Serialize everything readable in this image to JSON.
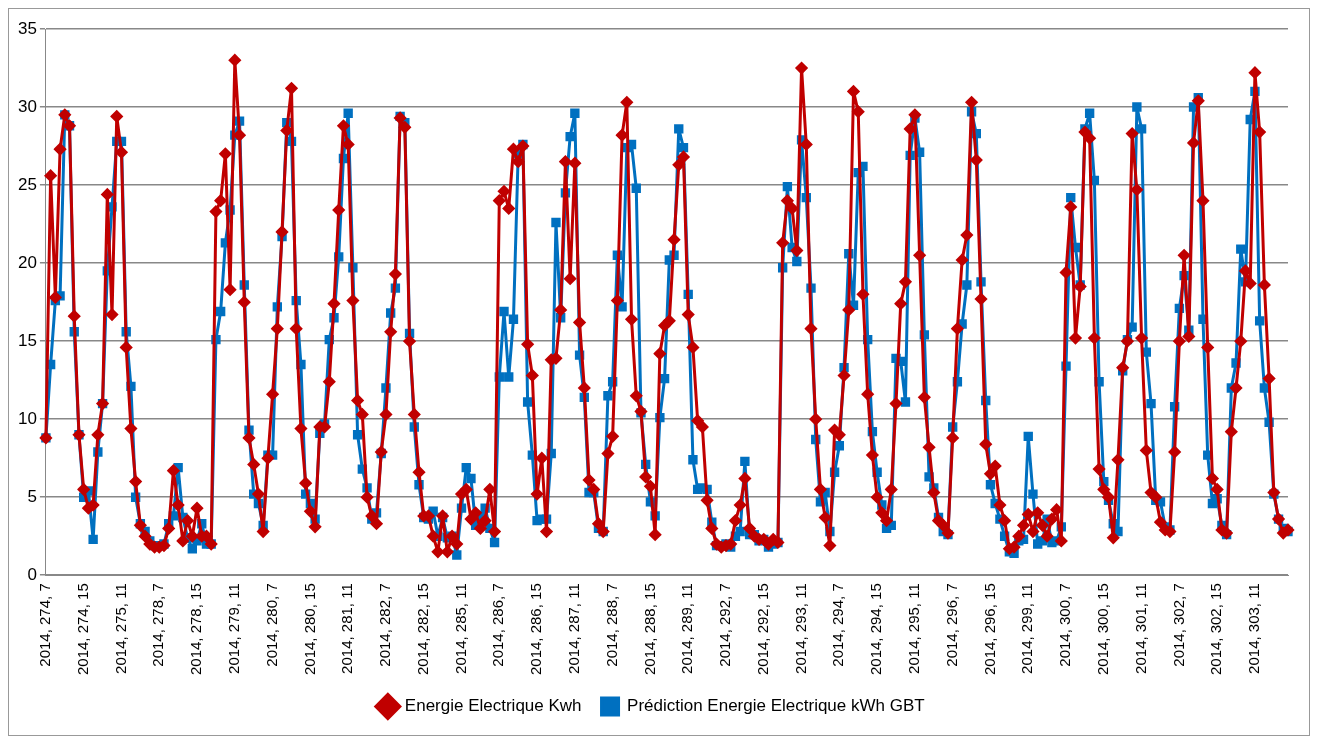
{
  "chart_data": {
    "type": "line",
    "categories": [
      "2014, 274, 7",
      null,
      null,
      null,
      null,
      null,
      null,
      null,
      "2014, 274, 15",
      null,
      null,
      null,
      null,
      null,
      null,
      null,
      "2014, 275, 11",
      null,
      null,
      null,
      null,
      null,
      null,
      null,
      "2014, 278, 7",
      null,
      null,
      null,
      null,
      null,
      null,
      null,
      "2014, 278, 15",
      null,
      null,
      null,
      null,
      null,
      null,
      null,
      "2014, 279, 11",
      null,
      null,
      null,
      null,
      null,
      null,
      null,
      "2014, 280, 7",
      null,
      null,
      null,
      null,
      null,
      null,
      null,
      "2014, 280, 15",
      null,
      null,
      null,
      null,
      null,
      null,
      null,
      "2014, 281, 11",
      null,
      null,
      null,
      null,
      null,
      null,
      null,
      "2014, 282, 7",
      null,
      null,
      null,
      null,
      null,
      null,
      null,
      "2014, 282, 15",
      null,
      null,
      null,
      null,
      null,
      null,
      null,
      "2014, 285, 11",
      null,
      null,
      null,
      null,
      null,
      null,
      null,
      "2014, 286, 7",
      null,
      null,
      null,
      null,
      null,
      null,
      null,
      "2014, 286, 15",
      null,
      null,
      null,
      null,
      null,
      null,
      null,
      "2014, 287, 11",
      null,
      null,
      null,
      null,
      null,
      null,
      null,
      "2014, 288, 7",
      null,
      null,
      null,
      null,
      null,
      null,
      null,
      "2014, 288, 15",
      null,
      null,
      null,
      null,
      null,
      null,
      null,
      "2014, 289, 11",
      null,
      null,
      null,
      null,
      null,
      null,
      null,
      "2014, 292, 7",
      null,
      null,
      null,
      null,
      null,
      null,
      null,
      "2014, 292, 15",
      null,
      null,
      null,
      null,
      null,
      null,
      null,
      "2014, 293, 11",
      null,
      null,
      null,
      null,
      null,
      null,
      null,
      "2014, 294, 7",
      null,
      null,
      null,
      null,
      null,
      null,
      null,
      "2014, 294, 15",
      null,
      null,
      null,
      null,
      null,
      null,
      null,
      "2014, 295, 11",
      null,
      null,
      null,
      null,
      null,
      null,
      null,
      "2014, 296, 7",
      null,
      null,
      null,
      null,
      null,
      null,
      null,
      "2014, 296, 15",
      null,
      null,
      null,
      null,
      null,
      null,
      null,
      "2014, 299, 11",
      null,
      null,
      null,
      null,
      null,
      null,
      null,
      "2014, 300, 7",
      null,
      null,
      null,
      null,
      null,
      null,
      null,
      "2014, 300, 15",
      null,
      null,
      null,
      null,
      null,
      null,
      null,
      "2014, 301, 11",
      null,
      null,
      null,
      null,
      null,
      null,
      null,
      "2014, 302, 7",
      null,
      null,
      null,
      null,
      null,
      null,
      null,
      "2014, 302, 15",
      null,
      null,
      null,
      null,
      null,
      null,
      null,
      "2014, 303, 11",
      null,
      null,
      null,
      null,
      null,
      null,
      null
    ],
    "series": [
      {
        "name": "Energie Electrique Kwh",
        "color": "#c00000",
        "marker": "diamond",
        "values": [
          8.8,
          25.6,
          17.8,
          27.3,
          29.5,
          28.8,
          16.6,
          9.0,
          5.5,
          4.3,
          4.5,
          9.0,
          11.0,
          24.4,
          16.7,
          29.4,
          27.1,
          14.6,
          9.4,
          6.0,
          3.2,
          2.5,
          2.0,
          1.8,
          1.8,
          1.9,
          3.0,
          6.7,
          4.5,
          2.2,
          3.5,
          2.5,
          4.3,
          2.5,
          2.5,
          2.0,
          23.3,
          24.0,
          27.0,
          18.3,
          33.0,
          28.2,
          17.5,
          8.8,
          7.1,
          5.2,
          2.8,
          7.5,
          11.6,
          15.8,
          22.0,
          28.5,
          31.2,
          15.8,
          9.4,
          5.9,
          4.1,
          3.1,
          9.5,
          9.5,
          12.4,
          17.4,
          23.4,
          28.8,
          27.6,
          17.6,
          11.2,
          10.3,
          5.0,
          3.8,
          3.3,
          7.9,
          10.3,
          15.6,
          19.3,
          29.3,
          28.7,
          15.0,
          10.3,
          6.6,
          3.8,
          3.8,
          2.5,
          1.5,
          3.8,
          1.5,
          2.5,
          2.0,
          5.2,
          5.5,
          3.6,
          4.0,
          3.0,
          3.5,
          5.5,
          2.8,
          24.0,
          24.6,
          23.5,
          27.3,
          26.5,
          27.5,
          14.8,
          12.8,
          5.2,
          7.5,
          2.8,
          13.8,
          13.9,
          17.0,
          26.5,
          19.0,
          26.4,
          16.2,
          12.0,
          6.1,
          5.5,
          3.3,
          2.8,
          7.8,
          8.9,
          17.6,
          28.2,
          30.3,
          16.4,
          11.5,
          10.5,
          6.3,
          5.7,
          2.6,
          14.2,
          16.0,
          16.3,
          21.5,
          26.3,
          26.8,
          16.7,
          14.6,
          9.9,
          9.5,
          4.8,
          3.0,
          2.0,
          1.8,
          1.9,
          2.0,
          3.5,
          4.5,
          6.2,
          3.0,
          2.5,
          2.3,
          2.3,
          2.0,
          2.3,
          2.1,
          21.3,
          24.0,
          23.5,
          20.8,
          32.5,
          27.6,
          15.8,
          10.0,
          5.5,
          3.7,
          1.9,
          9.3,
          9.0,
          12.8,
          17.0,
          31.0,
          29.7,
          18.0,
          11.6,
          7.7,
          5.0,
          4.0,
          3.5,
          5.5,
          11.0,
          17.4,
          18.8,
          28.6,
          29.5,
          20.5,
          11.4,
          8.2,
          5.3,
          3.5,
          3.2,
          2.7,
          8.8,
          15.8,
          20.2,
          21.8,
          30.3,
          26.6,
          17.7,
          8.4,
          6.5,
          7.0,
          4.5,
          3.5,
          1.7,
          1.8,
          2.5,
          3.2,
          3.9,
          2.8,
          4.0,
          3.2,
          2.5,
          3.6,
          4.2,
          2.2,
          19.4,
          23.6,
          15.2,
          18.5,
          28.4,
          28.0,
          15.2,
          6.8,
          5.5,
          5.0,
          2.4,
          7.4,
          13.3,
          15.0,
          28.3,
          24.7,
          15.2,
          8.0,
          5.3,
          5.0,
          3.4,
          2.9,
          2.8,
          7.9,
          15.0,
          20.5,
          15.3,
          27.7,
          30.4,
          24.0,
          14.6,
          6.2,
          5.5,
          2.9,
          2.7,
          9.2,
          12.0,
          15.0,
          19.5,
          18.7,
          32.2,
          28.4,
          18.6,
          12.6,
          5.3,
          3.6,
          2.7,
          2.9
        ]
      },
      {
        "name": "Prédiction Energie Electrique kWh GBT",
        "color": "#0070c0",
        "marker": "square",
        "values": [
          8.8,
          13.5,
          17.6,
          17.9,
          29.5,
          28.8,
          15.6,
          9.0,
          5.0,
          5.4,
          2.3,
          7.9,
          11.0,
          19.5,
          23.6,
          27.8,
          27.8,
          15.6,
          12.1,
          5.0,
          3.3,
          2.8,
          2.2,
          1.9,
          1.9,
          2.0,
          3.3,
          3.8,
          6.9,
          3.7,
          2.4,
          1.7,
          2.2,
          3.3,
          2.0,
          2.0,
          15.1,
          16.9,
          21.3,
          23.4,
          28.2,
          29.1,
          18.6,
          9.3,
          5.2,
          4.6,
          3.2,
          7.7,
          7.7,
          17.2,
          21.7,
          29.0,
          27.8,
          17.6,
          13.5,
          5.2,
          4.6,
          3.6,
          9.1,
          9.7,
          15.1,
          16.5,
          20.4,
          26.7,
          29.6,
          19.7,
          9.0,
          6.8,
          5.6,
          3.6,
          4.0,
          7.8,
          12.0,
          16.8,
          18.4,
          29.4,
          29.0,
          15.5,
          9.5,
          5.8,
          3.7,
          3.6,
          4.1,
          2.5,
          3.7,
          2.4,
          2.5,
          1.3,
          4.3,
          6.9,
          6.2,
          3.2,
          3.8,
          4.3,
          3.0,
          2.1,
          12.7,
          16.9,
          12.7,
          16.4,
          27.0,
          27.6,
          11.1,
          7.7,
          3.5,
          3.6,
          3.6,
          7.8,
          22.6,
          16.5,
          24.5,
          28.1,
          29.6,
          14.1,
          11.4,
          5.3,
          5.3,
          3.0,
          2.8,
          11.5,
          12.4,
          20.5,
          17.2,
          27.4,
          27.6,
          24.8,
          10.4,
          7.1,
          4.7,
          3.8,
          10.1,
          12.6,
          20.2,
          20.5,
          28.6,
          27.4,
          18.0,
          7.4,
          5.5,
          5.6,
          5.5,
          3.4,
          1.9,
          1.9,
          2.0,
          1.8,
          2.5,
          2.8,
          7.3,
          2.6,
          2.6,
          2.2,
          2.3,
          1.8,
          2.0,
          2.1,
          19.7,
          24.9,
          21.0,
          20.1,
          27.9,
          24.2,
          18.4,
          8.7,
          4.7,
          5.3,
          2.8,
          6.6,
          8.3,
          13.3,
          20.6,
          17.3,
          25.8,
          26.2,
          15.1,
          9.2,
          6.6,
          4.5,
          3.0,
          3.2,
          13.9,
          13.7,
          11.1,
          26.9,
          29.3,
          27.1,
          15.4,
          6.3,
          5.6,
          3.7,
          2.8,
          2.6,
          9.5,
          12.4,
          16.1,
          18.6,
          29.7,
          28.3,
          18.8,
          11.2,
          5.8,
          4.6,
          3.6,
          2.5,
          1.5,
          1.4,
          2.2,
          2.3,
          8.9,
          5.2,
          2.0,
          2.2,
          3.6,
          2.1,
          2.2,
          3.1,
          13.4,
          24.2,
          21.0,
          18.6,
          28.6,
          29.6,
          25.3,
          12.4,
          6.0,
          4.8,
          3.3,
          2.8,
          13.1,
          15.1,
          15.9,
          30.0,
          28.6,
          14.3,
          11.0,
          4.8,
          4.7,
          3.1,
          2.9,
          10.8,
          17.1,
          19.2,
          15.7,
          30.0,
          30.6,
          16.4,
          7.7,
          4.6,
          4.9,
          3.2,
          2.6,
          12.0,
          13.6,
          20.9,
          18.8,
          29.2,
          31.0,
          16.3,
          12.0,
          9.8,
          5.2,
          3.6,
          3.0,
          2.8
        ]
      }
    ],
    "ylim": [
      0,
      35
    ],
    "yticks": [
      0,
      5,
      10,
      15,
      20,
      25,
      30,
      35
    ],
    "grid": "y",
    "legend": "bottom"
  }
}
